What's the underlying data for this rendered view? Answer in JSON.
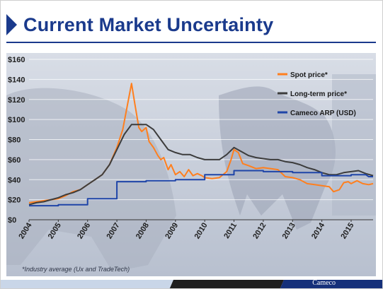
{
  "slide": {
    "title": "Current Market Uncertainty",
    "footnote": "*Industry average (Ux and TradeTech)",
    "brand": "Cameco"
  },
  "colors": {
    "title": "#1a3a8c",
    "spot": "#ff7f1e",
    "longterm": "#3c3c3c",
    "arp": "#1f45a8",
    "panel": "#c7cedb",
    "grid": "#ffffff"
  },
  "chart_data": {
    "type": "line",
    "title": "",
    "xlabel": "",
    "ylabel": "",
    "x_tick_labels": [
      "2004",
      "2005",
      "2006",
      "2007",
      "2008",
      "2009",
      "2010",
      "2011",
      "2012",
      "2013",
      "2014",
      "2015"
    ],
    "y_tick_labels": [
      "$0",
      "$20",
      "$40",
      "$60",
      "$80",
      "$100",
      "$120",
      "$140",
      "$160"
    ],
    "xlim": [
      2004,
      2015.75
    ],
    "ylim": [
      0,
      160
    ],
    "grid": true,
    "legend_position": "top-right",
    "series": [
      {
        "name": "Spot price*",
        "color": "#ff7f1e",
        "points": [
          [
            2004.0,
            17
          ],
          [
            2004.25,
            18
          ],
          [
            2004.5,
            19
          ],
          [
            2004.75,
            20
          ],
          [
            2005.0,
            21
          ],
          [
            2005.25,
            24
          ],
          [
            2005.5,
            28
          ],
          [
            2005.75,
            30
          ],
          [
            2006.0,
            35
          ],
          [
            2006.25,
            40
          ],
          [
            2006.5,
            45
          ],
          [
            2006.75,
            55
          ],
          [
            2007.0,
            72
          ],
          [
            2007.2,
            90
          ],
          [
            2007.35,
            113
          ],
          [
            2007.5,
            136
          ],
          [
            2007.6,
            118
          ],
          [
            2007.75,
            92
          ],
          [
            2007.85,
            88
          ],
          [
            2008.0,
            92
          ],
          [
            2008.1,
            78
          ],
          [
            2008.25,
            72
          ],
          [
            2008.4,
            64
          ],
          [
            2008.5,
            60
          ],
          [
            2008.6,
            62
          ],
          [
            2008.75,
            50
          ],
          [
            2008.85,
            55
          ],
          [
            2009.0,
            45
          ],
          [
            2009.15,
            48
          ],
          [
            2009.3,
            43
          ],
          [
            2009.45,
            50
          ],
          [
            2009.6,
            44
          ],
          [
            2009.75,
            46
          ],
          [
            2009.9,
            44
          ],
          [
            2010.0,
            42
          ],
          [
            2010.25,
            41
          ],
          [
            2010.5,
            42
          ],
          [
            2010.75,
            48
          ],
          [
            2010.9,
            60
          ],
          [
            2011.0,
            70
          ],
          [
            2011.15,
            67
          ],
          [
            2011.3,
            56
          ],
          [
            2011.5,
            54
          ],
          [
            2011.75,
            51
          ],
          [
            2012.0,
            52
          ],
          [
            2012.25,
            51
          ],
          [
            2012.5,
            50
          ],
          [
            2012.75,
            43
          ],
          [
            2013.0,
            42
          ],
          [
            2013.25,
            40
          ],
          [
            2013.5,
            36
          ],
          [
            2013.75,
            35
          ],
          [
            2014.0,
            34
          ],
          [
            2014.25,
            33
          ],
          [
            2014.4,
            28
          ],
          [
            2014.6,
            30
          ],
          [
            2014.75,
            37
          ],
          [
            2014.9,
            38
          ],
          [
            2015.0,
            36
          ],
          [
            2015.2,
            39
          ],
          [
            2015.4,
            36
          ],
          [
            2015.6,
            35
          ],
          [
            2015.75,
            36
          ]
        ]
      },
      {
        "name": "Long-term price*",
        "color": "#3c3c3c",
        "points": [
          [
            2004.0,
            15
          ],
          [
            2004.25,
            17
          ],
          [
            2004.5,
            18
          ],
          [
            2004.75,
            20
          ],
          [
            2005.0,
            22
          ],
          [
            2005.25,
            25
          ],
          [
            2005.5,
            27
          ],
          [
            2005.75,
            30
          ],
          [
            2006.0,
            35
          ],
          [
            2006.25,
            40
          ],
          [
            2006.5,
            45
          ],
          [
            2006.75,
            55
          ],
          [
            2007.0,
            70
          ],
          [
            2007.25,
            85
          ],
          [
            2007.5,
            95
          ],
          [
            2007.75,
            95
          ],
          [
            2008.0,
            95
          ],
          [
            2008.25,
            90
          ],
          [
            2008.5,
            80
          ],
          [
            2008.75,
            70
          ],
          [
            2009.0,
            67
          ],
          [
            2009.25,
            65
          ],
          [
            2009.5,
            65
          ],
          [
            2009.75,
            62
          ],
          [
            2010.0,
            60
          ],
          [
            2010.25,
            60
          ],
          [
            2010.5,
            60
          ],
          [
            2010.75,
            65
          ],
          [
            2011.0,
            72
          ],
          [
            2011.25,
            68
          ],
          [
            2011.5,
            64
          ],
          [
            2011.75,
            62
          ],
          [
            2012.0,
            61
          ],
          [
            2012.25,
            60
          ],
          [
            2012.5,
            60
          ],
          [
            2012.75,
            58
          ],
          [
            2013.0,
            57
          ],
          [
            2013.25,
            55
          ],
          [
            2013.5,
            52
          ],
          [
            2013.75,
            50
          ],
          [
            2014.0,
            47
          ],
          [
            2014.25,
            45
          ],
          [
            2014.5,
            45
          ],
          [
            2014.75,
            47
          ],
          [
            2015.0,
            48
          ],
          [
            2015.25,
            49
          ],
          [
            2015.5,
            46
          ],
          [
            2015.75,
            44
          ]
        ]
      },
      {
        "name": "Cameco ARP (USD)",
        "color": "#1f45a8",
        "points": [
          [
            2004.0,
            14
          ],
          [
            2005.0,
            14
          ],
          [
            2005.0,
            15
          ],
          [
            2006.0,
            15
          ],
          [
            2006.0,
            21
          ],
          [
            2007.0,
            21
          ],
          [
            2007.0,
            38
          ],
          [
            2008.0,
            38
          ],
          [
            2008.0,
            39
          ],
          [
            2009.0,
            39
          ],
          [
            2009.0,
            40
          ],
          [
            2010.0,
            40
          ],
          [
            2010.0,
            45
          ],
          [
            2011.0,
            45
          ],
          [
            2011.0,
            49
          ],
          [
            2012.0,
            49
          ],
          [
            2012.0,
            48
          ],
          [
            2013.0,
            48
          ],
          [
            2013.0,
            47
          ],
          [
            2014.0,
            47
          ],
          [
            2014.0,
            44
          ],
          [
            2015.0,
            44
          ],
          [
            2015.0,
            45
          ],
          [
            2015.5,
            45
          ],
          [
            2015.6,
            43
          ],
          [
            2015.75,
            43
          ]
        ]
      }
    ]
  }
}
